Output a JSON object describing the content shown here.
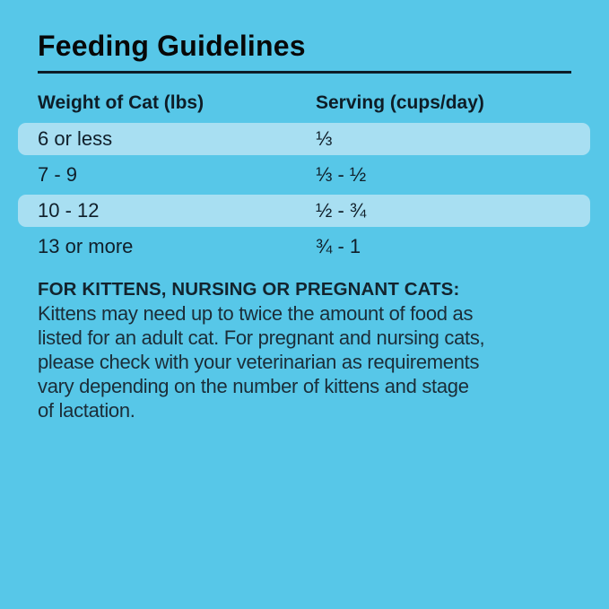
{
  "panel": {
    "background_color": "#57C7E8",
    "highlight_color": "#A8DFF2",
    "text_color": "#101F2A",
    "title": "Feeding Guidelines"
  },
  "table": {
    "columns": [
      "Weight of Cat (lbs)",
      "Serving (cups/day)"
    ],
    "rows": [
      {
        "weight": "6 or less",
        "serving": "⅓",
        "highlighted": true
      },
      {
        "weight": "7 - 9",
        "serving": "⅓ - ½",
        "highlighted": false
      },
      {
        "weight": "10 - 12",
        "serving": "½ - ¾",
        "highlighted": true
      },
      {
        "weight": "13 or more",
        "serving": "¾ - 1",
        "highlighted": false
      }
    ]
  },
  "note": {
    "heading": "FOR KITTENS, NURSING OR PREGNANT CATS:",
    "body_lines": [
      "Kittens may need up to twice the amount of food as",
      "listed for an adult cat. For pregnant and nursing cats,",
      "please check with your veterinarian as requirements",
      "vary depending on the number of kittens and stage",
      "of lactation."
    ]
  }
}
